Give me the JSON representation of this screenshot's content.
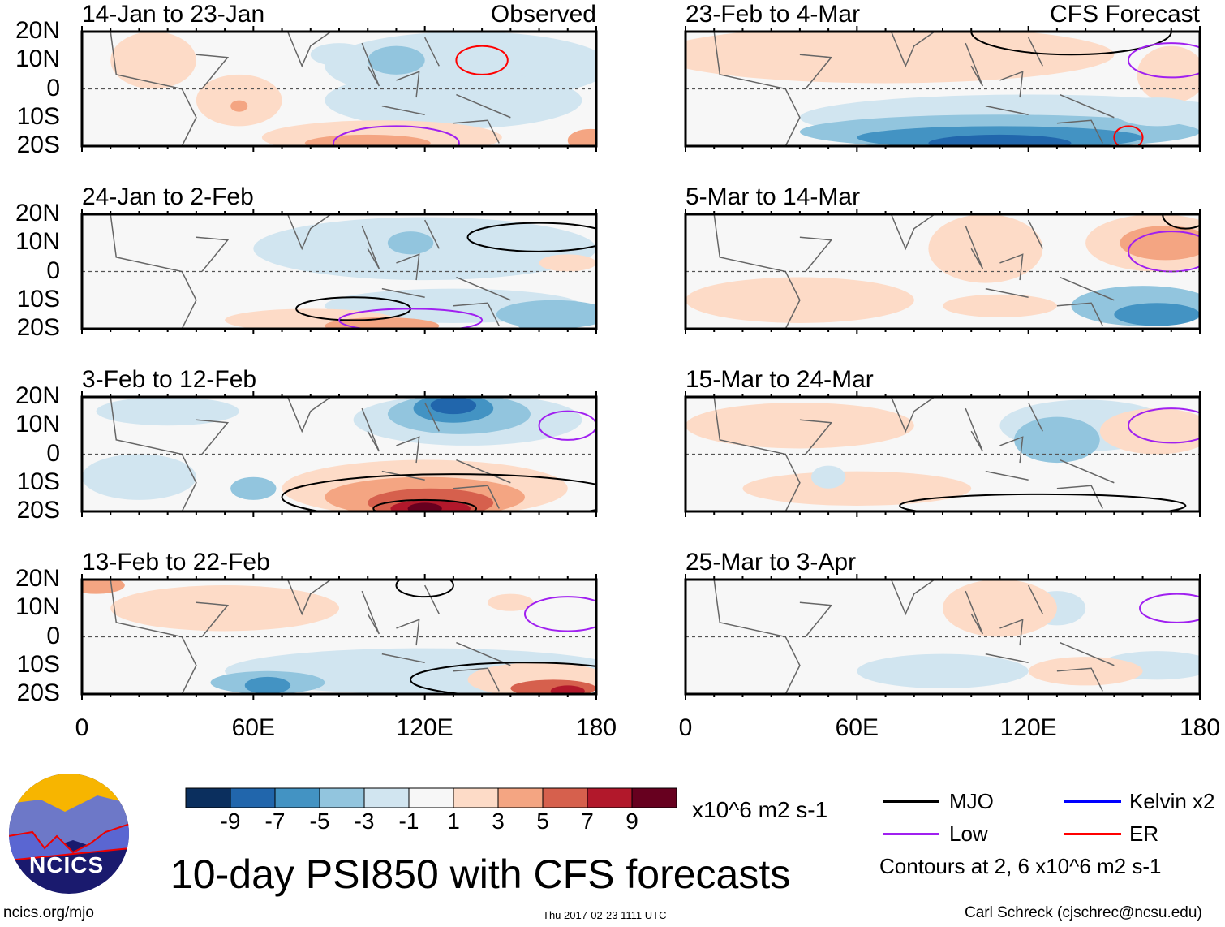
{
  "chart_data": {
    "type": "heatmap",
    "title": "10-day PSI850 with CFS forecasts",
    "units": "x10^6 m2 s-1",
    "x_ticks": [
      "0",
      "60E",
      "120E",
      "180"
    ],
    "y_ticks": [
      "20N",
      "10N",
      "0",
      "10S",
      "20S"
    ],
    "xlim": [
      0,
      180
    ],
    "ylim": [
      -20,
      20
    ],
    "panels": [
      {
        "label": "14-Jan to 23-Jan",
        "tag": "Observed"
      },
      {
        "label": "24-Jan to 2-Feb",
        "tag": ""
      },
      {
        "label": "3-Feb to 12-Feb",
        "tag": ""
      },
      {
        "label": "13-Feb to 22-Feb",
        "tag": ""
      },
      {
        "label": "23-Feb to 4-Mar",
        "tag": "CFS Forecast"
      },
      {
        "label": "5-Mar to 14-Mar",
        "tag": ""
      },
      {
        "label": "15-Mar to 24-Mar",
        "tag": ""
      },
      {
        "label": "25-Mar to 3-Apr",
        "tag": ""
      }
    ],
    "colorbar": {
      "ticks": [
        "-9",
        "-7",
        "-5",
        "-3",
        "-1",
        "1",
        "3",
        "5",
        "7",
        "9"
      ],
      "colors": [
        "#0b2f5e",
        "#2166ac",
        "#4393c3",
        "#92c5de",
        "#d1e5f0",
        "#f7f7f7",
        "#fddbc7",
        "#f4a582",
        "#d6604d",
        "#b2182b",
        "#67001f"
      ]
    },
    "legend": [
      {
        "label": "MJO",
        "color": "#000000"
      },
      {
        "label": "Kelvin x2",
        "color": "#0000ff"
      },
      {
        "label": "Low",
        "color": "#a020f0"
      },
      {
        "label": "ER",
        "color": "#ff0000"
      }
    ],
    "contour_note": "Contours at 2, 6 x10^6 m2 s-1"
  },
  "footer": {
    "logo_text": "NCICS",
    "url": "ncics.org/mjo",
    "timestamp": "Thu 2017-02-23 1111 UTC",
    "author": "Carl Schreck (cjschrec@ncsu.edu)"
  }
}
